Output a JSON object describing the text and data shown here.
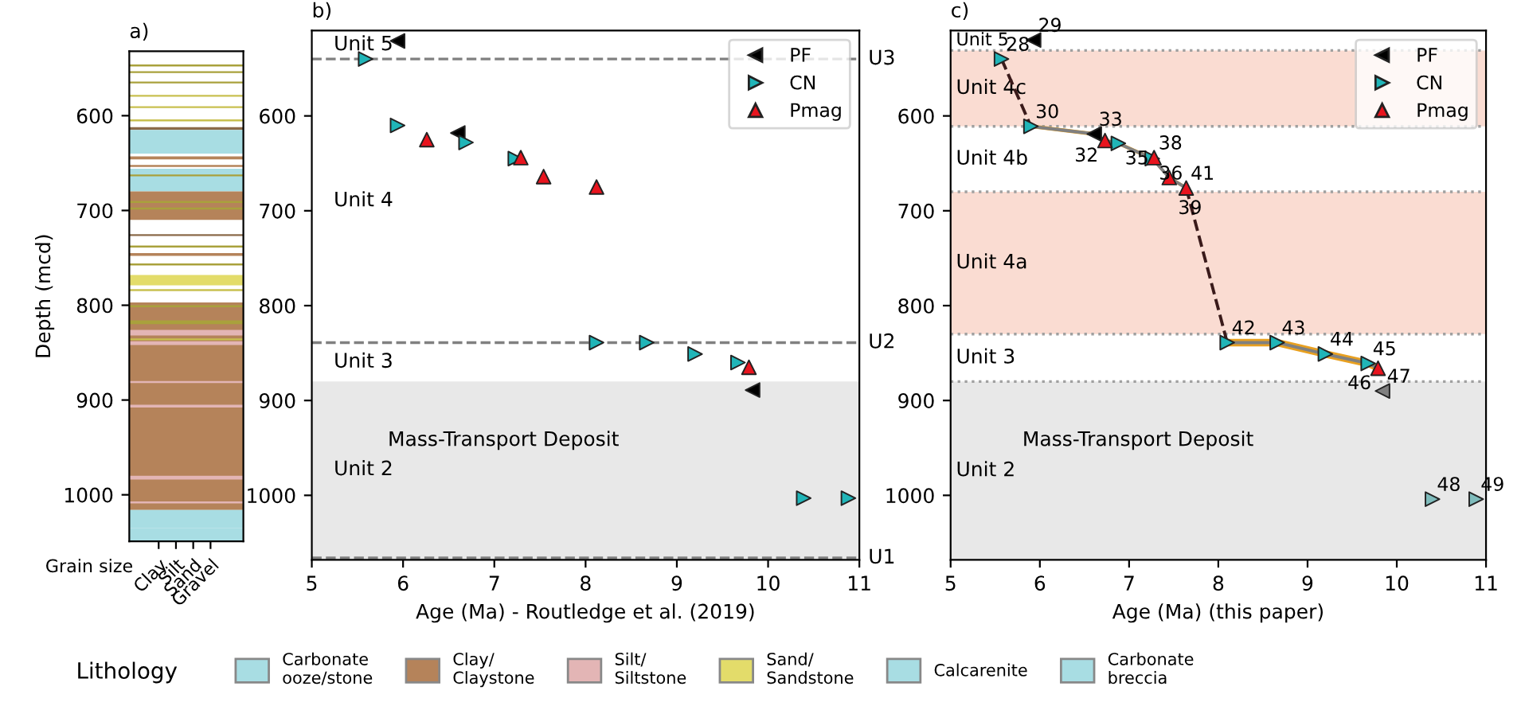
{
  "chart_data": [
    {
      "type": "bar",
      "title": "a)",
      "ylabel": "Depth (mcd)",
      "categories": [
        "Clay",
        "Silt",
        "Sand",
        "Gravel"
      ],
      "ylim": [
        1049,
        532
      ],
      "yticks": [
        600,
        700,
        800,
        900,
        1000
      ],
      "annotations": [
        "Grain size"
      ],
      "bands": [
        {
          "axis": "y",
          "from": 546,
          "to": 548,
          "color": "#a9a13c"
        },
        {
          "axis": "y",
          "from": 553,
          "to": 555,
          "color": "#a9a13c"
        },
        {
          "axis": "y",
          "from": 564,
          "to": 566,
          "color": "#a9a13c"
        },
        {
          "axis": "y",
          "from": 578,
          "to": 580,
          "color": "#c8c050"
        },
        {
          "axis": "y",
          "from": 590,
          "to": 592,
          "color": "#c8c050"
        },
        {
          "axis": "y",
          "from": 604,
          "to": 606,
          "color": "#c8c050"
        },
        {
          "axis": "y",
          "from": 612,
          "to": 615,
          "color": "#8b6a4a"
        },
        {
          "axis": "y",
          "from": 615,
          "to": 640,
          "color": "#a8dde3"
        },
        {
          "axis": "y",
          "from": 643,
          "to": 646,
          "color": "#b5835a"
        },
        {
          "axis": "y",
          "from": 652,
          "to": 654,
          "color": "#b5835a"
        },
        {
          "axis": "y",
          "from": 656,
          "to": 680,
          "color": "#a8dde3"
        },
        {
          "axis": "y",
          "from": 662,
          "to": 664,
          "color": "#a9a13c"
        },
        {
          "axis": "y",
          "from": 680,
          "to": 710,
          "color": "#b5835a"
        },
        {
          "axis": "y",
          "from": 690,
          "to": 692,
          "color": "#a9a13c"
        },
        {
          "axis": "y",
          "from": 697,
          "to": 699,
          "color": "#a9a13c"
        },
        {
          "axis": "y",
          "from": 725,
          "to": 727,
          "color": "#8b6a4a"
        },
        {
          "axis": "y",
          "from": 737,
          "to": 739,
          "color": "#a9a13c"
        },
        {
          "axis": "y",
          "from": 745,
          "to": 748,
          "color": "#b5835a"
        },
        {
          "axis": "y",
          "from": 756,
          "to": 758,
          "color": "#a9a13c"
        },
        {
          "axis": "y",
          "from": 768,
          "to": 779,
          "color": "#e3dc6a"
        },
        {
          "axis": "y",
          "from": 783,
          "to": 785,
          "color": "#c8c050"
        },
        {
          "axis": "y",
          "from": 797,
          "to": 1016,
          "color": "#b5835a"
        },
        {
          "axis": "y",
          "from": 800,
          "to": 802,
          "color": "#a9a13c"
        },
        {
          "axis": "y",
          "from": 816,
          "to": 820,
          "color": "#a9a13c"
        },
        {
          "axis": "y",
          "from": 826,
          "to": 832,
          "color": "#e3b5b5"
        },
        {
          "axis": "y",
          "from": 835,
          "to": 837,
          "color": "#c8c050"
        },
        {
          "axis": "y",
          "from": 838,
          "to": 842,
          "color": "#e3b5b5"
        },
        {
          "axis": "y",
          "from": 880,
          "to": 882,
          "color": "#e3b5b5"
        },
        {
          "axis": "y",
          "from": 905,
          "to": 908,
          "color": "#e3b5b5"
        },
        {
          "axis": "y",
          "from": 980,
          "to": 984,
          "color": "#e3b5b5"
        },
        {
          "axis": "y",
          "from": 1007,
          "to": 1009,
          "color": "#e3b5b5"
        },
        {
          "axis": "y",
          "from": 1016,
          "to": 1035,
          "color": "#a8dde3"
        },
        {
          "axis": "y",
          "from": 1035,
          "to": 1049,
          "color": "#a8dde3"
        }
      ]
    },
    {
      "type": "scatter",
      "title": "b)",
      "xlabel": "Age (Ma) - Routledge et al. (2019)",
      "legend": "top right",
      "xlim": [
        5,
        11
      ],
      "xticks": [
        5,
        6,
        7,
        8,
        9,
        10,
        11
      ],
      "ylim": [
        1068,
        510
      ],
      "yticks": [
        600,
        700,
        800,
        900,
        1000
      ],
      "ref_lines": [
        {
          "axis": "y",
          "value": 540,
          "label": "U3",
          "color": "#808080",
          "line_style": "dashed"
        },
        {
          "axis": "y",
          "value": 839,
          "label": "U2",
          "color": "#808080",
          "line_style": "dashed"
        },
        {
          "axis": "y",
          "value": 1066,
          "label": "U1",
          "color": "#808080",
          "line_style": "dashed"
        }
      ],
      "bands": [
        {
          "axis": "y",
          "from": 880,
          "to": 1068,
          "label": "Mass-Transport Deposit",
          "color": "#e8e8e8"
        }
      ],
      "annotations": [
        "Unit 5",
        "Unit 4",
        "Unit 3",
        "Unit 2"
      ],
      "series": [
        {
          "name": "PF",
          "color": "#000000",
          "marker": "triangle-left",
          "x": [
            5.94,
            6.6,
            9.83
          ],
          "values": [
            521,
            618,
            889
          ]
        },
        {
          "name": "CN",
          "color": "#20b5b8",
          "marker": "triangle-right",
          "x": [
            5.59,
            5.94,
            6.69,
            7.23,
            8.12,
            8.67,
            9.2,
            9.67,
            10.39,
            10.88
          ],
          "values": [
            540,
            610,
            628,
            645,
            839,
            839,
            851,
            860,
            1003,
            1003
          ]
        },
        {
          "name": "Pmag",
          "color": "#e8141e",
          "marker": "triangle",
          "x": [
            6.26,
            7.29,
            7.54,
            8.12,
            9.79
          ],
          "values": [
            625,
            644,
            664,
            675,
            865
          ]
        }
      ]
    },
    {
      "type": "scatter",
      "title": "c)",
      "xlabel": "Age (Ma) (this paper)",
      "legend": "top right",
      "xlim": [
        5,
        11
      ],
      "xticks": [
        5,
        6,
        7,
        8,
        9,
        10,
        11
      ],
      "ylim": [
        1068,
        510
      ],
      "yticks": [
        600,
        700,
        800,
        900,
        1000
      ],
      "ref_lines": [
        {
          "axis": "y",
          "value": 531,
          "color": "#a0a0a0",
          "line_style": "dotted"
        },
        {
          "axis": "y",
          "value": 611,
          "color": "#a0a0a0",
          "line_style": "dotted"
        },
        {
          "axis": "y",
          "value": 680,
          "color": "#a0a0a0",
          "line_style": "dotted"
        },
        {
          "axis": "y",
          "value": 830,
          "color": "#a0a0a0",
          "line_style": "dotted"
        },
        {
          "axis": "y",
          "value": 880,
          "color": "#a0a0a0",
          "line_style": "dotted"
        }
      ],
      "bands": [
        {
          "axis": "y",
          "from": 531,
          "to": 611,
          "color": "#fadcd2"
        },
        {
          "axis": "y",
          "from": 680,
          "to": 830,
          "color": "#fadcd2"
        },
        {
          "axis": "y",
          "from": 880,
          "to": 1068,
          "label": "Mass-Transport Deposit",
          "color": "#e8e8e8"
        }
      ],
      "annotations": [
        "Unit 5",
        "Unit 4c",
        "Unit 4b",
        "Unit 4a",
        "Unit 3",
        "Unit 2",
        {
          "text": "29",
          "x": 5.93,
          "y": 520
        },
        {
          "text": "28",
          "x": 5.57,
          "y": 540
        },
        {
          "text": "30",
          "x": 5.9,
          "y": 611
        },
        {
          "text": "33",
          "x": 6.61,
          "y": 619
        },
        {
          "text": "32",
          "x": 6.73,
          "y": 626
        },
        {
          "text": "35",
          "x": 6.88,
          "y": 629
        },
        {
          "text": "38",
          "x": 7.28,
          "y": 644
        },
        {
          "text": "36",
          "x": 7.26,
          "y": 645
        },
        {
          "text": "39",
          "x": 7.45,
          "y": 665
        },
        {
          "text": "41",
          "x": 7.64,
          "y": 676
        },
        {
          "text": "42",
          "x": 8.1,
          "y": 839
        },
        {
          "text": "43",
          "x": 8.66,
          "y": 839
        },
        {
          "text": "44",
          "x": 9.2,
          "y": 851
        },
        {
          "text": "45",
          "x": 9.68,
          "y": 861
        },
        {
          "text": "46",
          "x": 9.79,
          "y": 866
        },
        {
          "text": "47",
          "x": 9.84,
          "y": 890
        },
        {
          "text": "48",
          "x": 10.4,
          "y": 1004
        },
        {
          "text": "49",
          "x": 10.89,
          "y": 1004
        }
      ],
      "series": [
        {
          "type": "line",
          "color": "#3a1a1a",
          "line_style": "dashed",
          "marker": "none",
          "x": [
            5.57,
            5.9
          ],
          "values": [
            540,
            611
          ]
        },
        {
          "type": "line",
          "color": "#3a1a1a",
          "line_style": "dashed",
          "marker": "none",
          "x": [
            7.64,
            8.1
          ],
          "values": [
            676,
            839
          ]
        },
        {
          "type": "line",
          "color": "#808080",
          "marker": "none",
          "x": [
            5.9,
            6.61,
            6.73,
            6.88,
            7.26,
            7.45,
            7.64
          ],
          "values": [
            611,
            619,
            626,
            629,
            645,
            665,
            676
          ],
          "lower": [
            609,
            617,
            624,
            627,
            643,
            663,
            674
          ],
          "upper": [
            613,
            621,
            628,
            631,
            647,
            667,
            678
          ]
        },
        {
          "type": "line",
          "color": "#808080",
          "marker": "none",
          "x": [
            8.1,
            8.66,
            9.2,
            9.68,
            9.79
          ],
          "values": [
            839,
            839,
            851,
            861,
            866
          ],
          "lower": [
            835,
            835,
            847,
            857,
            862
          ],
          "upper": [
            843,
            843,
            855,
            865,
            870
          ]
        },
        {
          "name": "PF",
          "color": "#000000",
          "colors": [
            "#000000",
            "#000000",
            "#808080"
          ],
          "marker": "triangle-left",
          "x": [
            5.93,
            6.61,
            9.84
          ],
          "values": [
            520,
            619,
            890
          ]
        },
        {
          "name": "CN",
          "color": "#20b5b8",
          "colors": [
            "#20b5b8",
            "#20b5b8",
            "#20b5b8",
            "#20b5b8",
            "#20b5b8",
            "#20b5b8",
            "#20b5b8",
            "#20b5b8",
            "#7fbcbc",
            "#7fbcbc"
          ],
          "marker": "triangle-right",
          "x": [
            5.57,
            5.9,
            6.88,
            7.26,
            8.1,
            8.66,
            9.2,
            9.68,
            10.4,
            10.89
          ],
          "values": [
            540,
            611,
            629,
            645,
            839,
            839,
            851,
            861,
            1004,
            1004
          ]
        },
        {
          "name": "Pmag",
          "color": "#e8141e",
          "marker": "triangle",
          "x": [
            6.73,
            7.28,
            7.45,
            7.64,
            9.79
          ],
          "values": [
            626,
            644,
            665,
            676,
            866
          ]
        }
      ]
    },
    {
      "type": "other",
      "legend_title": "Lithology",
      "legend": "bottom",
      "series": [
        {
          "name": "Carbonate\nooze/stone",
          "color": "#a8dde3"
        },
        {
          "name": "Clay/\nClaystone",
          "color": "#b5835a"
        },
        {
          "name": "Silt/\nSiltstone",
          "color": "#e3b5b5"
        },
        {
          "name": "Sand/\nSandstone",
          "color": "#e3dc6a"
        },
        {
          "name": "Calcarenite",
          "color": "#a8dde3"
        },
        {
          "name": "Carbonate\nbreccia",
          "color": "#a8dde3"
        }
      ]
    }
  ]
}
